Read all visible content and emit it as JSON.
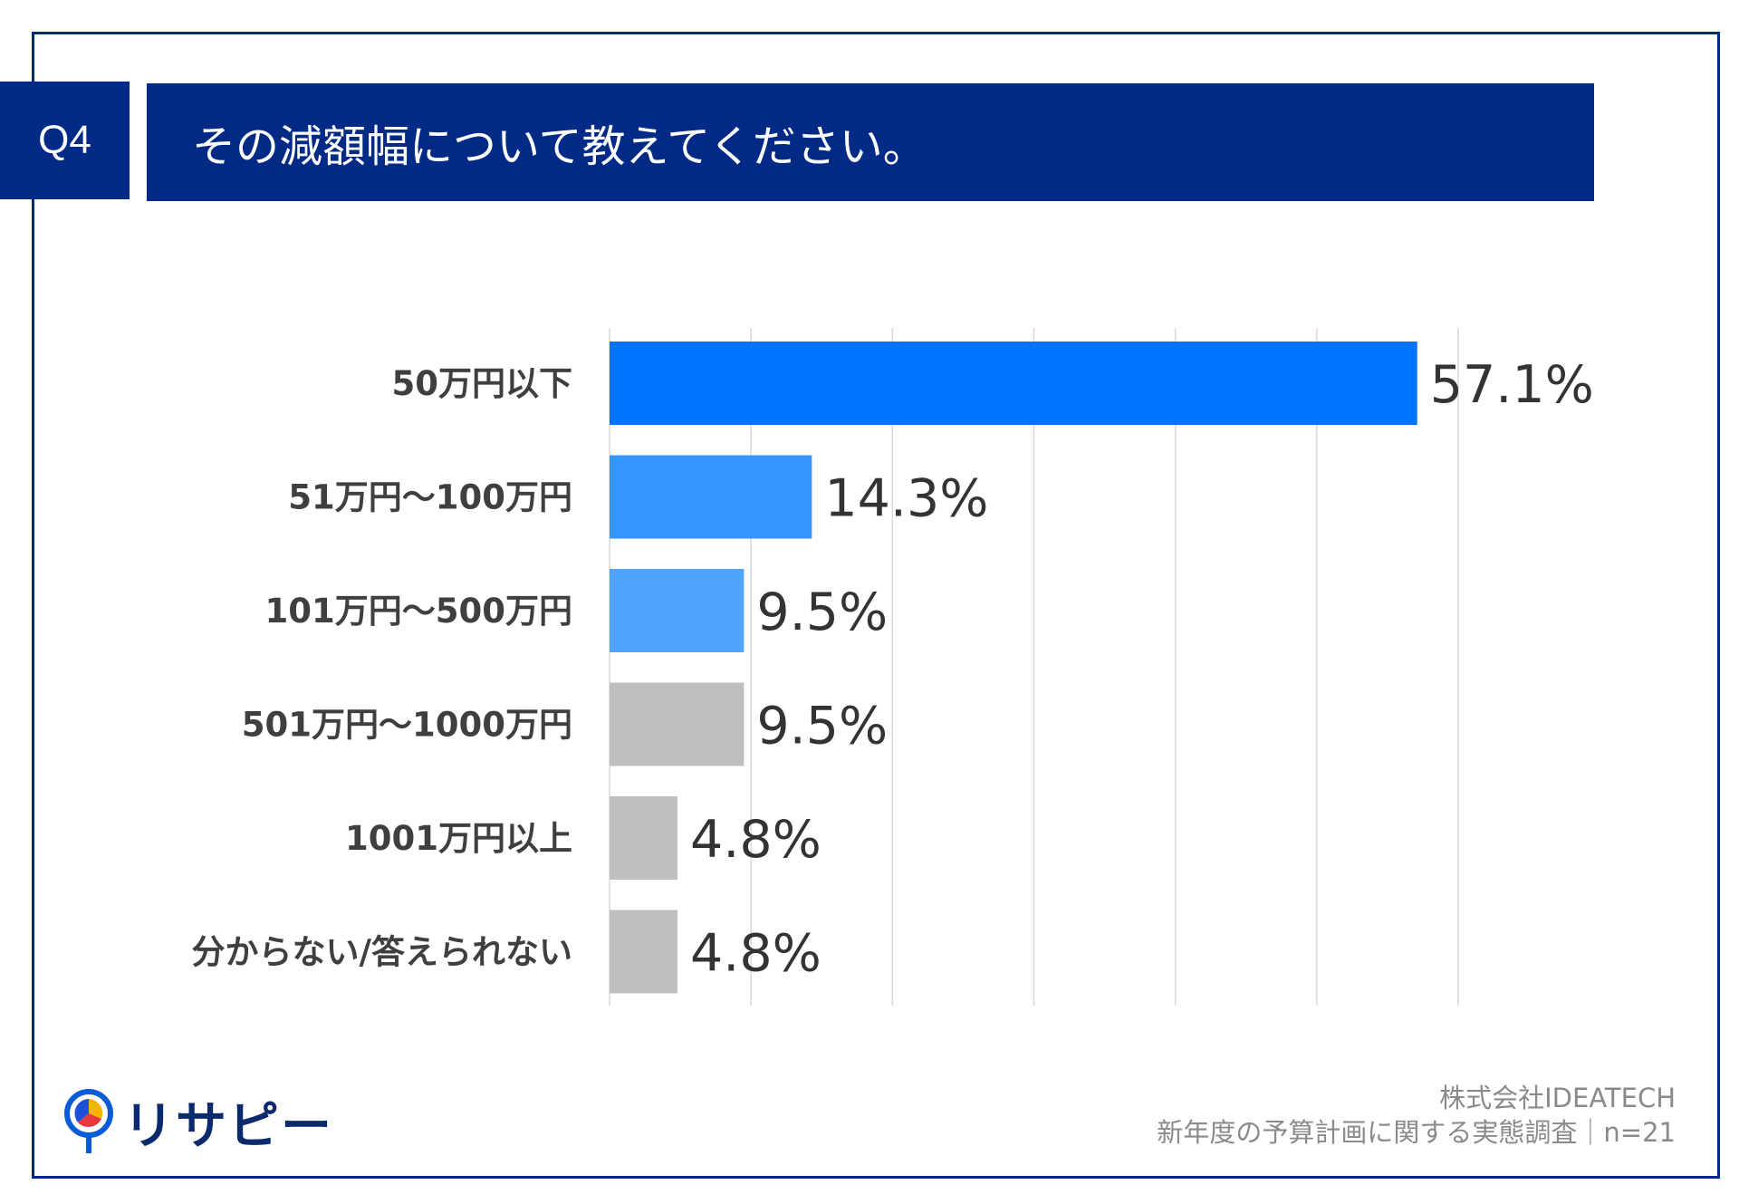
{
  "header": {
    "question_number": "Q4",
    "question_text": "その減額幅について教えてください。"
  },
  "chart_data": {
    "type": "bar",
    "orientation": "horizontal",
    "title": "その減額幅について教えてください。",
    "categories": [
      "50万円以下",
      "51万円〜100万円",
      "101万円〜500万円",
      "501万円〜1000万円",
      "1001万円以上",
      "分からない/答えられない"
    ],
    "values": [
      57.1,
      14.3,
      9.5,
      9.5,
      4.8,
      4.8
    ],
    "value_labels": [
      "57.1%",
      "14.3%",
      "9.5%",
      "9.5%",
      "4.8%",
      "4.8%"
    ],
    "colors": [
      "#0073ff",
      "#3595ff",
      "#4ea4ff",
      "#bfbfbf",
      "#bfbfbf",
      "#bfbfbf"
    ],
    "gridline_color": "#d9d9d9",
    "xlim": [
      0,
      60
    ],
    "grid_step": 10,
    "grid": true,
    "xlabel": "",
    "ylabel": ""
  },
  "footer": {
    "logo_text": "リサピー",
    "company": "株式会社IDEATECH",
    "survey": "新年度の予算計画に関する実態調査｜n=21"
  },
  "colors": {
    "brand": "#002a86"
  }
}
